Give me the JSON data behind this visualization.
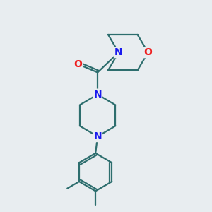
{
  "bg_color": "#e8edf0",
  "bond_color": "#2d6e6e",
  "N_color": "#1a1aee",
  "O_color": "#ee1a1a",
  "line_width": 1.6,
  "font_size_atom": 10,
  "figsize": [
    3.0,
    3.0
  ],
  "dpi": 100,
  "xlim": [
    0,
    10
  ],
  "ylim": [
    0,
    10
  ]
}
